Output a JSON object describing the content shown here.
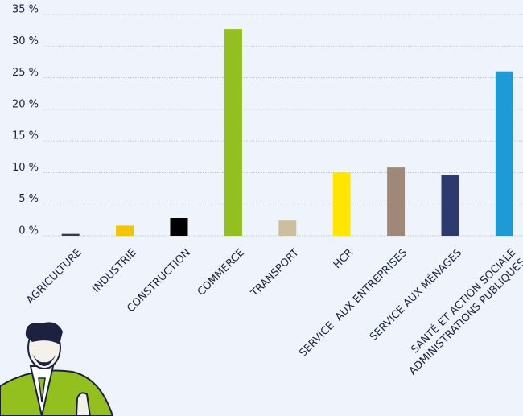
{
  "chart_data": {
    "type": "bar",
    "categories": [
      "AGRICULTURE",
      "INDUSTRIE",
      "CONSTRUCTION",
      "COMMERCE",
      "TRANSPORT",
      "HCR",
      "SERVICE  AUX ENTREPRISES",
      "SERVICE AUX MÉNAGES",
      "SANTÉ ET ACTION SOCIALE\nADMINISTRATIONS PUBLIQUES"
    ],
    "values": [
      0.3,
      1.6,
      2.8,
      32.7,
      2.4,
      10.0,
      10.8,
      9.6,
      26.0
    ],
    "colors": [
      "#3a3a3a",
      "#f5c400",
      "#000000",
      "#93c01f",
      "#cbbf9f",
      "#ffe600",
      "#a08878",
      "#2d3a6e",
      "#1e9ad6"
    ],
    "ylim": [
      0,
      35
    ],
    "yticks": [
      {
        "value": 0,
        "label": "0 %"
      },
      {
        "value": 5,
        "label": "5 %"
      },
      {
        "value": 10,
        "label": "10 %"
      },
      {
        "value": 15,
        "label": "15 %"
      },
      {
        "value": 20,
        "label": "20 %"
      },
      {
        "value": 25,
        "label": "25 %"
      },
      {
        "value": 30,
        "label": "30 %"
      },
      {
        "value": 35,
        "label": "35 %"
      }
    ],
    "grid": true
  }
}
